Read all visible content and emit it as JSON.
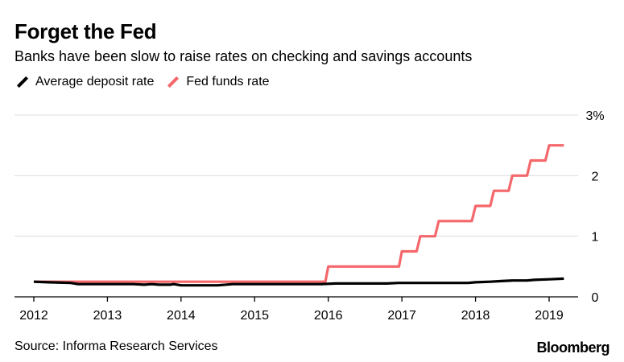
{
  "header": {
    "title": "Forget the Fed",
    "subtitle": "Banks have been slow to raise rates on checking and savings accounts"
  },
  "footer": {
    "source": "Source: Informa Research Services",
    "brand": "Bloomberg"
  },
  "chart_data": {
    "type": "line",
    "title": "Forget the Fed",
    "subtitle": "Banks have been slow to raise rates on checking and savings accounts",
    "xlabel": "",
    "ylabel": "",
    "xlim": [
      2012,
      2019.4
    ],
    "ylim": [
      0,
      3
    ],
    "x_ticks": [
      2012,
      2013,
      2014,
      2015,
      2016,
      2017,
      2018,
      2019
    ],
    "y_ticks": [
      {
        "value": 0,
        "label": "0"
      },
      {
        "value": 1,
        "label": "1"
      },
      {
        "value": 2,
        "label": "2"
      },
      {
        "value": 3,
        "label": "3%"
      }
    ],
    "grid": true,
    "legend": "top-left",
    "series": [
      {
        "name": "Average deposit rate",
        "color": "#000000",
        "points": [
          [
            2012.0,
            0.25
          ],
          [
            2012.2,
            0.24
          ],
          [
            2012.5,
            0.23
          ],
          [
            2012.6,
            0.21
          ],
          [
            2013.0,
            0.21
          ],
          [
            2013.35,
            0.21
          ],
          [
            2013.5,
            0.2
          ],
          [
            2013.6,
            0.21
          ],
          [
            2013.7,
            0.2
          ],
          [
            2013.85,
            0.2
          ],
          [
            2013.9,
            0.21
          ],
          [
            2014.0,
            0.19
          ],
          [
            2014.5,
            0.19
          ],
          [
            2014.7,
            0.21
          ],
          [
            2015.0,
            0.21
          ],
          [
            2015.5,
            0.21
          ],
          [
            2015.9,
            0.21
          ],
          [
            2016.1,
            0.22
          ],
          [
            2016.5,
            0.22
          ],
          [
            2016.8,
            0.22
          ],
          [
            2016.95,
            0.23
          ],
          [
            2017.3,
            0.23
          ],
          [
            2017.6,
            0.23
          ],
          [
            2017.9,
            0.23
          ],
          [
            2018.0,
            0.24
          ],
          [
            2018.2,
            0.25
          ],
          [
            2018.35,
            0.26
          ],
          [
            2018.5,
            0.27
          ],
          [
            2018.7,
            0.27
          ],
          [
            2018.8,
            0.28
          ],
          [
            2019.0,
            0.29
          ],
          [
            2019.2,
            0.3
          ]
        ]
      },
      {
        "name": "Fed funds rate",
        "color": "#f4676a",
        "points": [
          [
            2012.0,
            0.25
          ],
          [
            2015.96,
            0.25
          ],
          [
            2016.0,
            0.5
          ],
          [
            2016.96,
            0.5
          ],
          [
            2017.0,
            0.75
          ],
          [
            2017.2,
            0.75
          ],
          [
            2017.25,
            1.0
          ],
          [
            2017.45,
            1.0
          ],
          [
            2017.5,
            1.25
          ],
          [
            2017.95,
            1.25
          ],
          [
            2018.0,
            1.5
          ],
          [
            2018.2,
            1.5
          ],
          [
            2018.25,
            1.75
          ],
          [
            2018.45,
            1.75
          ],
          [
            2018.5,
            2.0
          ],
          [
            2018.7,
            2.0
          ],
          [
            2018.75,
            2.25
          ],
          [
            2018.95,
            2.25
          ],
          [
            2019.0,
            2.5
          ],
          [
            2019.2,
            2.5
          ]
        ]
      }
    ]
  }
}
